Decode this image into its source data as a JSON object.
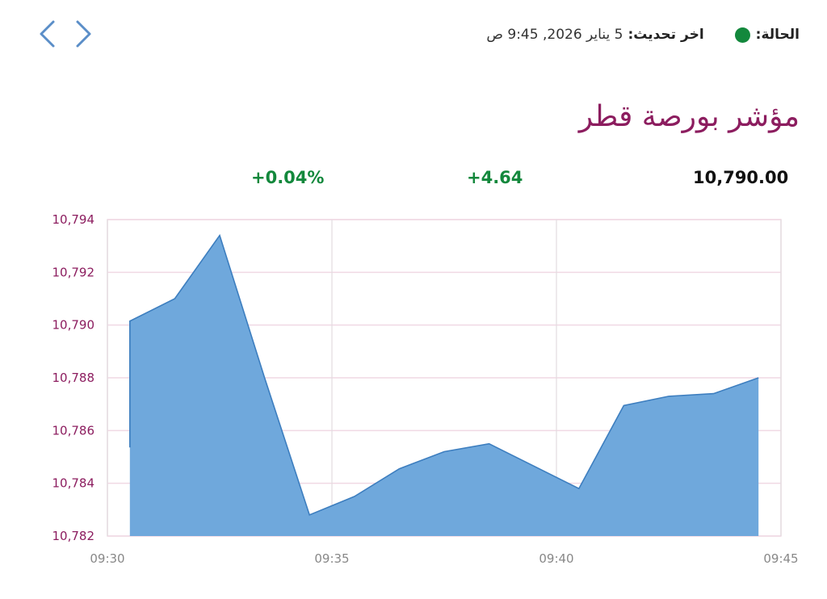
{
  "nav": {
    "prev_icon": "chevron-left-icon",
    "next_icon": "chevron-right-icon"
  },
  "status": {
    "label": "الحالة:",
    "color": "#13883c",
    "update_label": "اخر تحديث:",
    "update_value": "5 يناير 2026, 9:45 ص"
  },
  "title": "مؤشر بورصة قطر",
  "title_color": "#8c1d5f",
  "stats": {
    "value": "10,790.00",
    "change": "+4.64",
    "change_pct": "+0.04%",
    "positive_color": "#13883c"
  },
  "chart_data": {
    "type": "area",
    "x": [
      "09:30",
      "09:31",
      "09:32",
      "09:33",
      "09:34",
      "09:35",
      "09:36",
      "09:37",
      "09:38",
      "09:39",
      "09:40",
      "09:41",
      "09:42",
      "09:43",
      "09:44"
    ],
    "y": [
      10790.15,
      10791.0,
      10793.4,
      10788.0,
      10782.8,
      10783.5,
      10784.55,
      10785.2,
      10785.5,
      10784.65,
      10783.8,
      10786.95,
      10787.3,
      10787.4,
      10788.0
    ],
    "start_value": 10785.36,
    "xticks": [
      "09:30",
      "09:35",
      "09:40",
      "09:45"
    ],
    "yticks": [
      "10,782",
      "10,784",
      "10,786",
      "10,788",
      "10,790",
      "10,792",
      "10,794"
    ],
    "ylim": [
      10782,
      10794
    ],
    "xlim": [
      "09:30",
      "09:45"
    ],
    "grid": true,
    "fill_color": "#6fa8dc",
    "line_color": "#3d7ebf",
    "grid_color": "#f0d9e4",
    "ytick_color": "#8c1d5f",
    "xtick_color": "#888888"
  }
}
